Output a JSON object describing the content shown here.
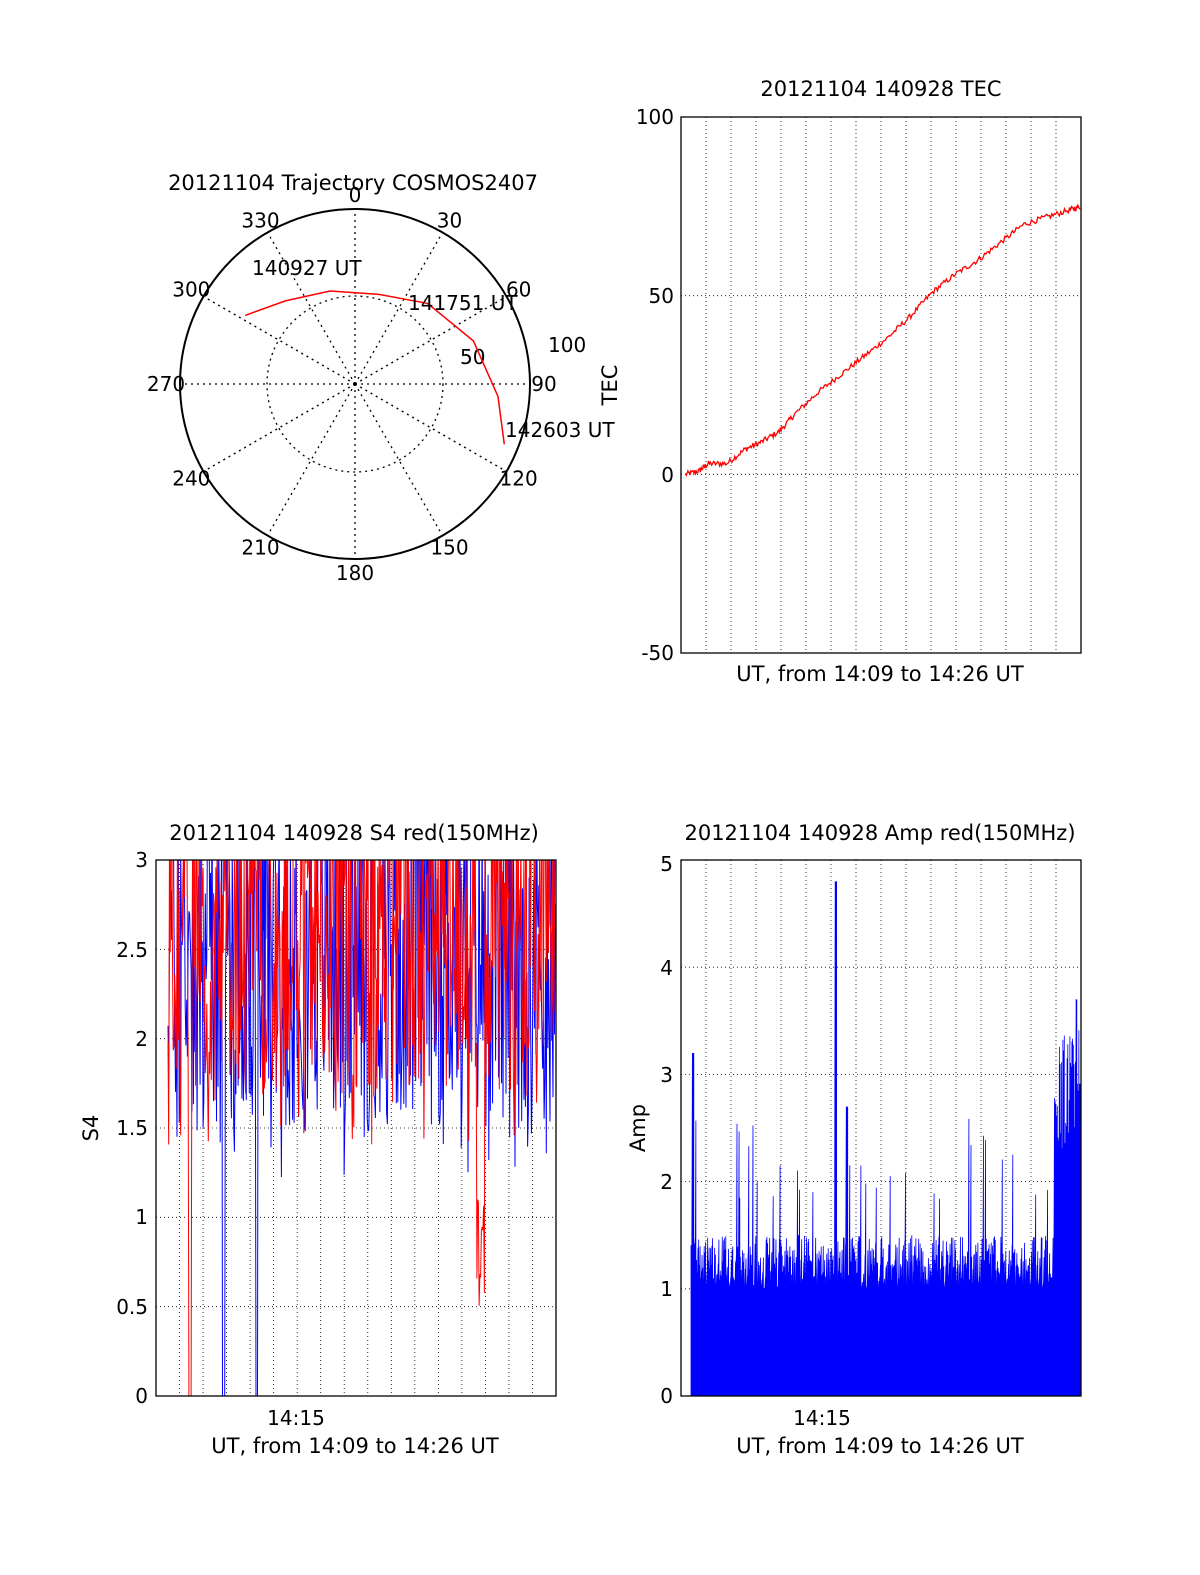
{
  "colors": {
    "red": "#ff0000",
    "blue": "#0000ff",
    "axis": "#000000",
    "grid": "#000000"
  },
  "charts": {
    "polar": {
      "title": "20121104 Trajectory COSMOS2407",
      "azimuth_labels": [
        "0",
        "30",
        "60",
        "90",
        "120",
        "150",
        "180",
        "210",
        "240",
        "270",
        "300",
        "330"
      ],
      "radius_labels": [
        "50",
        "100"
      ],
      "point_labels": [
        "140927 UT",
        "141751 UT",
        "142603 UT"
      ]
    },
    "tec": {
      "title": "20121104 140928 TEC",
      "ylabel": "TEC",
      "xlabel": "UT, from 14:09 to 14:26 UT",
      "yticks": [
        "100",
        "50",
        "0",
        "-50"
      ]
    },
    "s4": {
      "title": "20121104 140928 S4 red(150MHz)",
      "ylabel": "S4",
      "xlabel": "UT, from 14:09 to 14:26 UT",
      "xtick": "14:15",
      "yticks": [
        "3",
        "2.5",
        "2",
        "1.5",
        "1",
        "0.5",
        "0"
      ]
    },
    "amp": {
      "title": "20121104 140928 Amp red(150MHz)",
      "ylabel": "Amp",
      "xlabel": "UT, from 14:09 to 14:26 UT",
      "xtick": "14:15",
      "yticks": [
        "5",
        "4",
        "3",
        "2",
        "1",
        "0"
      ]
    }
  },
  "chart_data": [
    {
      "type": "scatter",
      "subtype": "polar-trajectory",
      "title": "20121104 Trajectory COSMOS2407",
      "azimuth_ticks": [
        0,
        30,
        60,
        90,
        120,
        150,
        180,
        210,
        240,
        270,
        300,
        330
      ],
      "radial_rings": [
        50,
        100
      ],
      "rlim": [
        0,
        100
      ],
      "series": [
        {
          "color": "#ff0000",
          "points": [
            {
              "az": 302,
              "r": 74,
              "label": "140927 UT"
            },
            {
              "az": 320,
              "r": 62
            },
            {
              "az": 345,
              "r": 55
            },
            {
              "az": 15,
              "r": 53
            },
            {
              "az": 42,
              "r": 62,
              "label": "141751 UT"
            },
            {
              "az": 70,
              "r": 72
            },
            {
              "az": 95,
              "r": 82
            },
            {
              "az": 112,
              "r": 92,
              "label": "142603 UT"
            }
          ]
        }
      ]
    },
    {
      "type": "line",
      "title": "20121104 140928 TEC",
      "xlabel": "UT, from 14:09 to 14:26 UT",
      "ylabel": "TEC",
      "ylim": [
        -50,
        100
      ],
      "yticks": [
        100,
        50,
        0,
        -50
      ],
      "xlim_minutes": [
        0,
        17.5
      ],
      "grid": true,
      "series": [
        {
          "color": "#ff0000",
          "x": [
            0.2,
            0.8,
            1.2,
            2.0,
            2.8,
            3.5,
            4.3,
            5.0,
            6.0,
            7.0,
            8.0,
            9.0,
            10.0,
            11.0,
            12.0,
            13.0,
            14.0,
            15.0,
            16.0,
            17.0,
            17.5
          ],
          "y": [
            0,
            1,
            3,
            3,
            7,
            9,
            12,
            17,
            23,
            28,
            33,
            38,
            44,
            51,
            56,
            60,
            65,
            70,
            72,
            74,
            75
          ]
        }
      ]
    },
    {
      "type": "line",
      "title": "20121104 140928 S4 red(150MHz)",
      "xlabel": "UT, from 14:09 to 14:26 UT",
      "ylabel": "S4",
      "ylim": [
        0,
        3
      ],
      "yticks": [
        0,
        0.5,
        1,
        1.5,
        2,
        2.5,
        3
      ],
      "xticks": [
        "14:15"
      ],
      "grid": true,
      "series": [
        {
          "color": "#0000ff",
          "band": [
            1.5,
            3
          ],
          "dips": [
            {
              "x_min": 2.5,
              "to": 0
            },
            {
              "x_min": 4.0,
              "to": 0
            }
          ]
        },
        {
          "color": "#ff0000",
          "band": [
            1.7,
            3
          ],
          "dips": [
            {
              "x_min": 1.0,
              "to": 0
            },
            {
              "x_min": 14.1,
              "to": 0.45
            }
          ]
        }
      ]
    },
    {
      "type": "area",
      "title": "20121104 140928 Amp red(150MHz)",
      "xlabel": "UT, from 14:09 to 14:26 UT",
      "ylabel": "Amp",
      "ylim": [
        0,
        5
      ],
      "yticks": [
        0,
        1,
        2,
        3,
        4,
        5
      ],
      "xticks": [
        "14:15"
      ],
      "grid": true,
      "series": [
        {
          "color": "#0000ff",
          "baseline": 1.2,
          "peaks": [
            {
              "x_min": 0.1,
              "y": 3.2
            },
            {
              "x_min": 6.5,
              "y": 4.8
            },
            {
              "x_min": 7.0,
              "y": 2.7
            },
            {
              "x_min": 17.3,
              "y": 3.7
            }
          ]
        }
      ]
    }
  ]
}
